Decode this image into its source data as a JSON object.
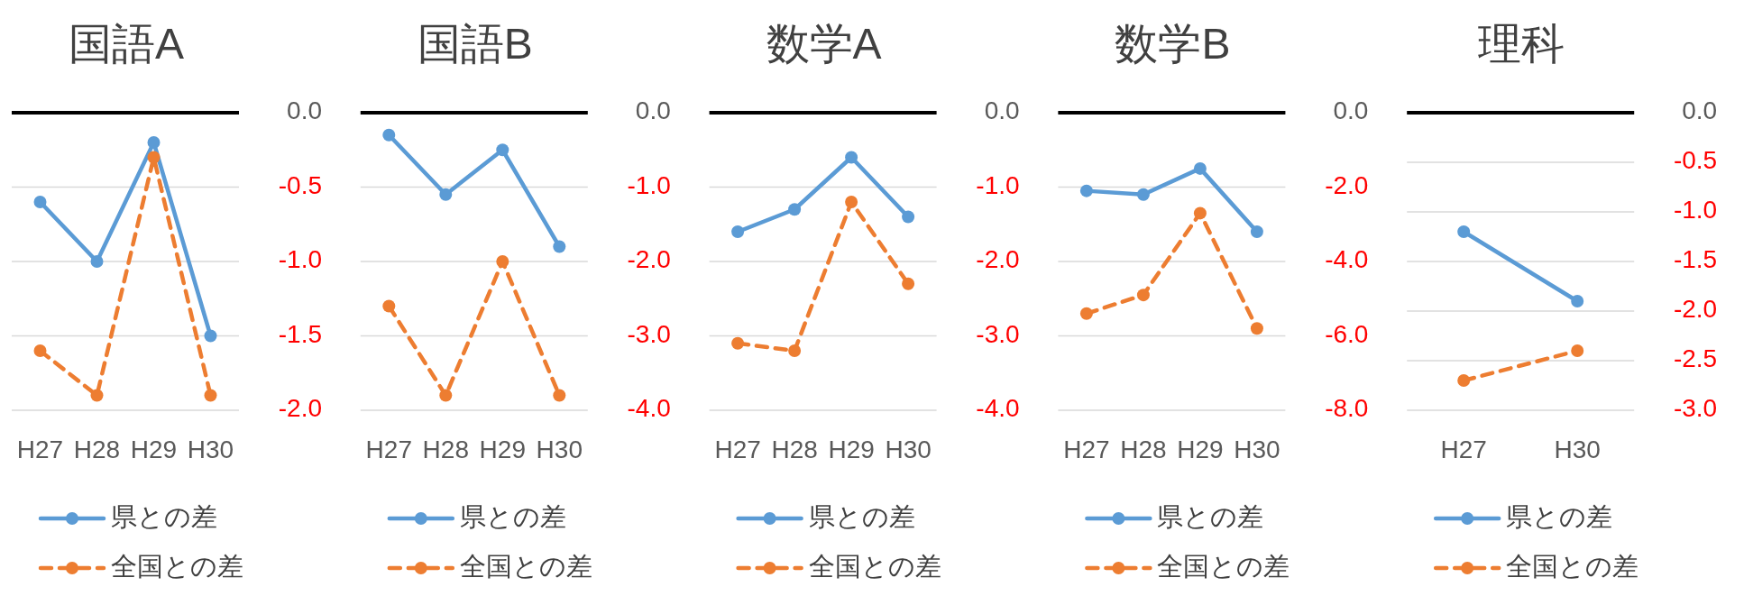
{
  "chart_data": [
    {
      "type": "line",
      "title": "国語A",
      "categories": [
        "H27",
        "H28",
        "H29",
        "H30"
      ],
      "series": [
        {
          "name": "県との差",
          "color": "#5b9bd5",
          "values": [
            -0.6,
            -1.0,
            -0.2,
            -1.5
          ],
          "line_style": "solid",
          "marker": "circle"
        },
        {
          "name": "全国との差",
          "color": "#ed7d31",
          "values": [
            -1.6,
            -1.9,
            -0.3,
            -1.9
          ],
          "line_style": "dashed",
          "marker": "circle"
        }
      ],
      "ylim": [
        -2.0,
        0
      ],
      "yticks": [
        {
          "value": 0,
          "label": "0.0"
        },
        {
          "value": -0.5,
          "label": "-0.5"
        },
        {
          "value": -1,
          "label": "-1.0"
        },
        {
          "value": -1.5,
          "label": "-1.5"
        },
        {
          "value": -2,
          "label": "-2.0"
        }
      ],
      "grid": "y",
      "legend": "bottom",
      "ref_lines": [
        {
          "axis": "y",
          "value": 0,
          "color": "#000000"
        }
      ]
    },
    {
      "type": "line",
      "title": "国語B",
      "categories": [
        "H27",
        "H28",
        "H29",
        "H30"
      ],
      "series": [
        {
          "name": "県との差",
          "color": "#5b9bd5",
          "values": [
            -0.3,
            -1.1,
            -0.5,
            -1.8
          ],
          "line_style": "solid",
          "marker": "circle"
        },
        {
          "name": "全国との差",
          "color": "#ed7d31",
          "values": [
            -2.6,
            -3.8,
            -2.0,
            -3.8
          ],
          "line_style": "dashed",
          "marker": "circle"
        }
      ],
      "ylim": [
        -4.0,
        0
      ],
      "yticks": [
        {
          "value": 0,
          "label": "0.0"
        },
        {
          "value": -1,
          "label": "-1.0"
        },
        {
          "value": -2,
          "label": "-2.0"
        },
        {
          "value": -3,
          "label": "-3.0"
        },
        {
          "value": -4,
          "label": "-4.0"
        }
      ],
      "grid": "y",
      "legend": "bottom",
      "ref_lines": [
        {
          "axis": "y",
          "value": 0,
          "color": "#000000"
        }
      ]
    },
    {
      "type": "line",
      "title": "数学A",
      "categories": [
        "H27",
        "H28",
        "H29",
        "H30"
      ],
      "series": [
        {
          "name": "県との差",
          "color": "#5b9bd5",
          "values": [
            -1.6,
            -1.3,
            -0.6,
            -1.4
          ],
          "line_style": "solid",
          "marker": "circle"
        },
        {
          "name": "全国との差",
          "color": "#ed7d31",
          "values": [
            -3.1,
            -3.2,
            -1.2,
            -2.3
          ],
          "line_style": "dashed",
          "marker": "circle"
        }
      ],
      "ylim": [
        -4.0,
        0
      ],
      "yticks": [
        {
          "value": 0,
          "label": "0.0"
        },
        {
          "value": -1,
          "label": "-1.0"
        },
        {
          "value": -2,
          "label": "-2.0"
        },
        {
          "value": -3,
          "label": "-3.0"
        },
        {
          "value": -4,
          "label": "-4.0"
        }
      ],
      "grid": "y",
      "legend": "bottom",
      "ref_lines": [
        {
          "axis": "y",
          "value": 0,
          "color": "#000000"
        }
      ]
    },
    {
      "type": "line",
      "title": "数学B",
      "categories": [
        "H27",
        "H28",
        "H29",
        "H30"
      ],
      "series": [
        {
          "name": "県との差",
          "color": "#5b9bd5",
          "values": [
            -2.1,
            -2.2,
            -1.5,
            -3.2
          ],
          "line_style": "solid",
          "marker": "circle"
        },
        {
          "name": "全国との差",
          "color": "#ed7d31",
          "values": [
            -5.4,
            -4.9,
            -2.7,
            -5.8
          ],
          "line_style": "dashed",
          "marker": "circle"
        }
      ],
      "ylim": [
        -8.0,
        0
      ],
      "yticks": [
        {
          "value": 0,
          "label": "0.0"
        },
        {
          "value": -2,
          "label": "-2.0"
        },
        {
          "value": -4,
          "label": "-4.0"
        },
        {
          "value": -6,
          "label": "-6.0"
        },
        {
          "value": -8,
          "label": "-8.0"
        }
      ],
      "grid": "y",
      "legend": "bottom",
      "ref_lines": [
        {
          "axis": "y",
          "value": 0,
          "color": "#000000"
        }
      ]
    },
    {
      "type": "line",
      "title": "理科",
      "categories": [
        "H27",
        "H30"
      ],
      "series": [
        {
          "name": "県との差",
          "color": "#5b9bd5",
          "values": [
            -1.2,
            -1.9
          ],
          "line_style": "solid",
          "marker": "circle"
        },
        {
          "name": "全国との差",
          "color": "#ed7d31",
          "values": [
            -2.7,
            -2.4
          ],
          "line_style": "dashed",
          "marker": "circle"
        }
      ],
      "ylim": [
        -3.0,
        0
      ],
      "yticks": [
        {
          "value": 0,
          "label": "0.0"
        },
        {
          "value": -0.5,
          "label": "-0.5"
        },
        {
          "value": -1,
          "label": "-1.0"
        },
        {
          "value": -1.5,
          "label": "-1.5"
        },
        {
          "value": -2,
          "label": "-2.0"
        },
        {
          "value": -2.5,
          "label": "-2.5"
        },
        {
          "value": -3,
          "label": "-3.0"
        }
      ],
      "grid": "y",
      "legend": "bottom",
      "ref_lines": [
        {
          "axis": "y",
          "value": 0,
          "color": "#000000"
        }
      ]
    }
  ]
}
